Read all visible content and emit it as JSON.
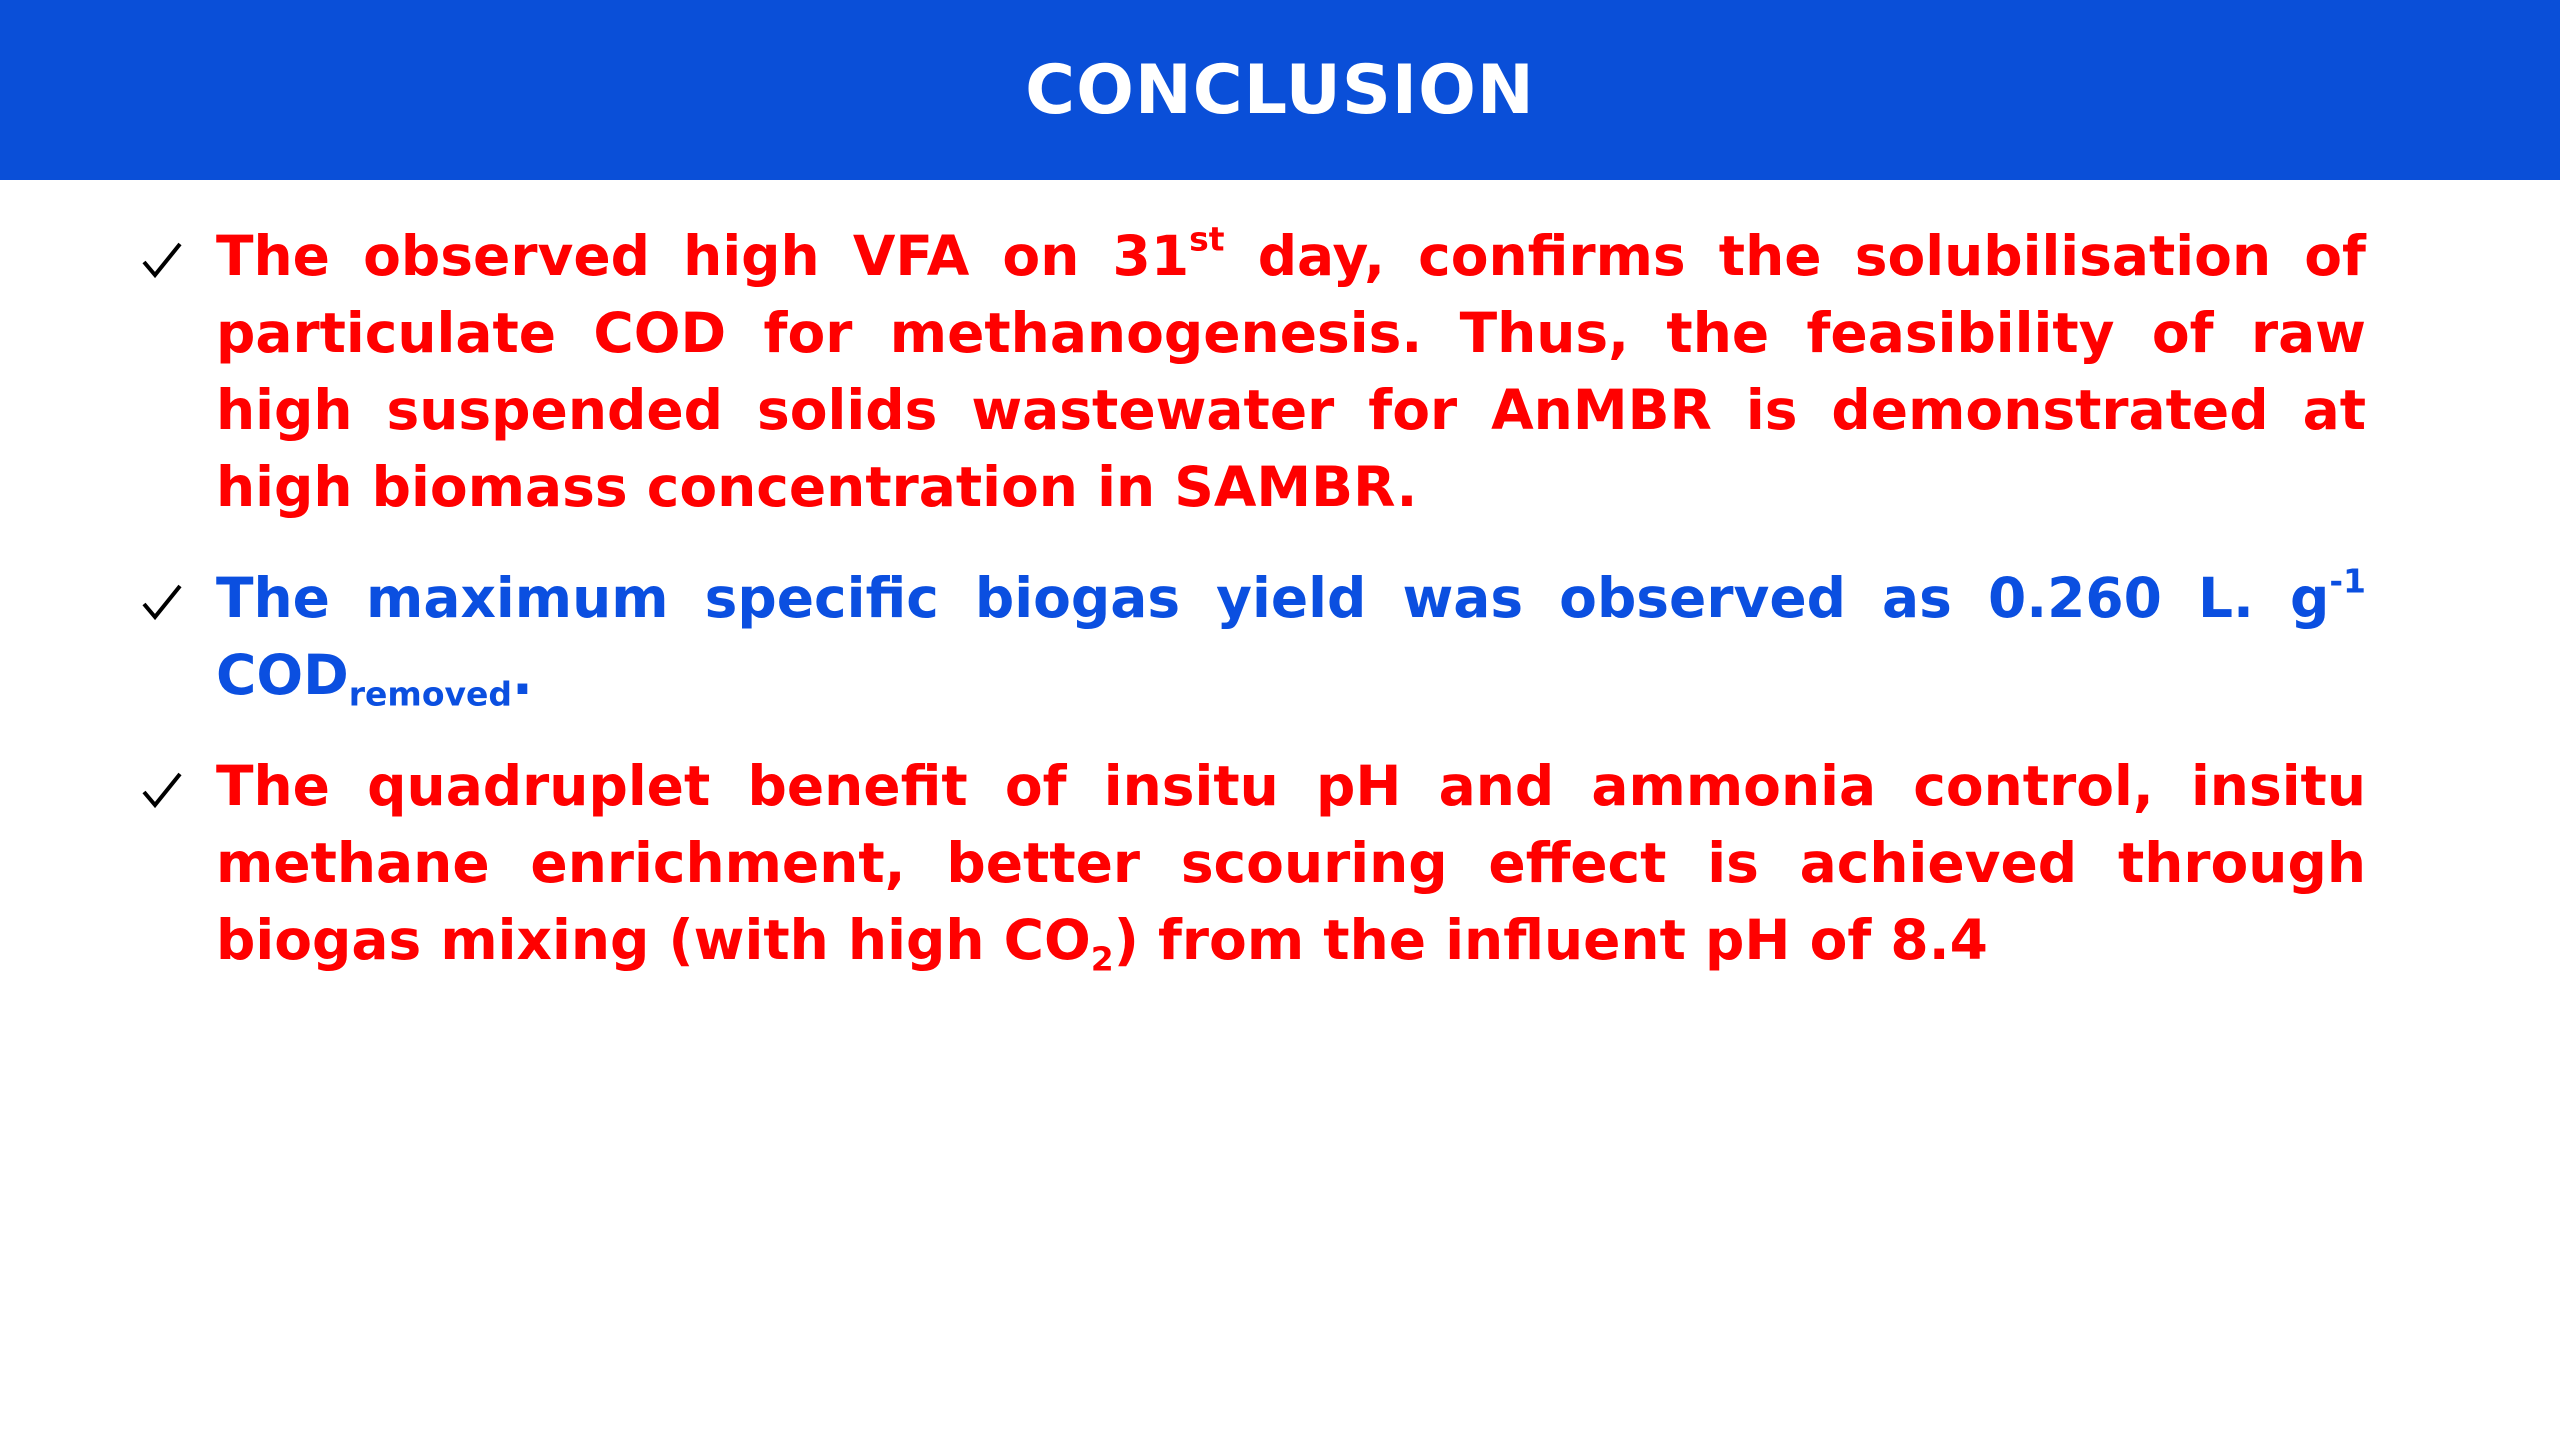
{
  "header": {
    "title": "CONCLUSION"
  },
  "bullets": [
    {
      "color": "#ff0000",
      "parts": [
        {
          "text": "The observed high VFA on 31"
        },
        {
          "text": "st",
          "position": "super"
        },
        {
          "text": " day, confirms the solubilisation of particulate COD for methanogenesis. Thus, the feasibility of raw high suspended solids wastewater for AnMBR is demonstrated at high biomass concentration in SAMBR."
        }
      ]
    },
    {
      "color": "#0b4fe0",
      "parts": [
        {
          "text": "The maximum specific biogas yield was observed as 0.260 L. g"
        },
        {
          "text": "-1",
          "position": "super"
        },
        {
          "text": " COD"
        },
        {
          "text": "removed",
          "position": "sub"
        },
        {
          "text": "."
        }
      ]
    },
    {
      "color": "#ff0000",
      "parts": [
        {
          "text": "The quadruplet benefit of insitu pH and ammonia control, insitu methane enrichment, better scouring effect is achieved through biogas mixing (with high CO"
        },
        {
          "text": "2",
          "position": "sub"
        },
        {
          "text": ") from the influent pH of 8.4"
        }
      ]
    }
  ]
}
